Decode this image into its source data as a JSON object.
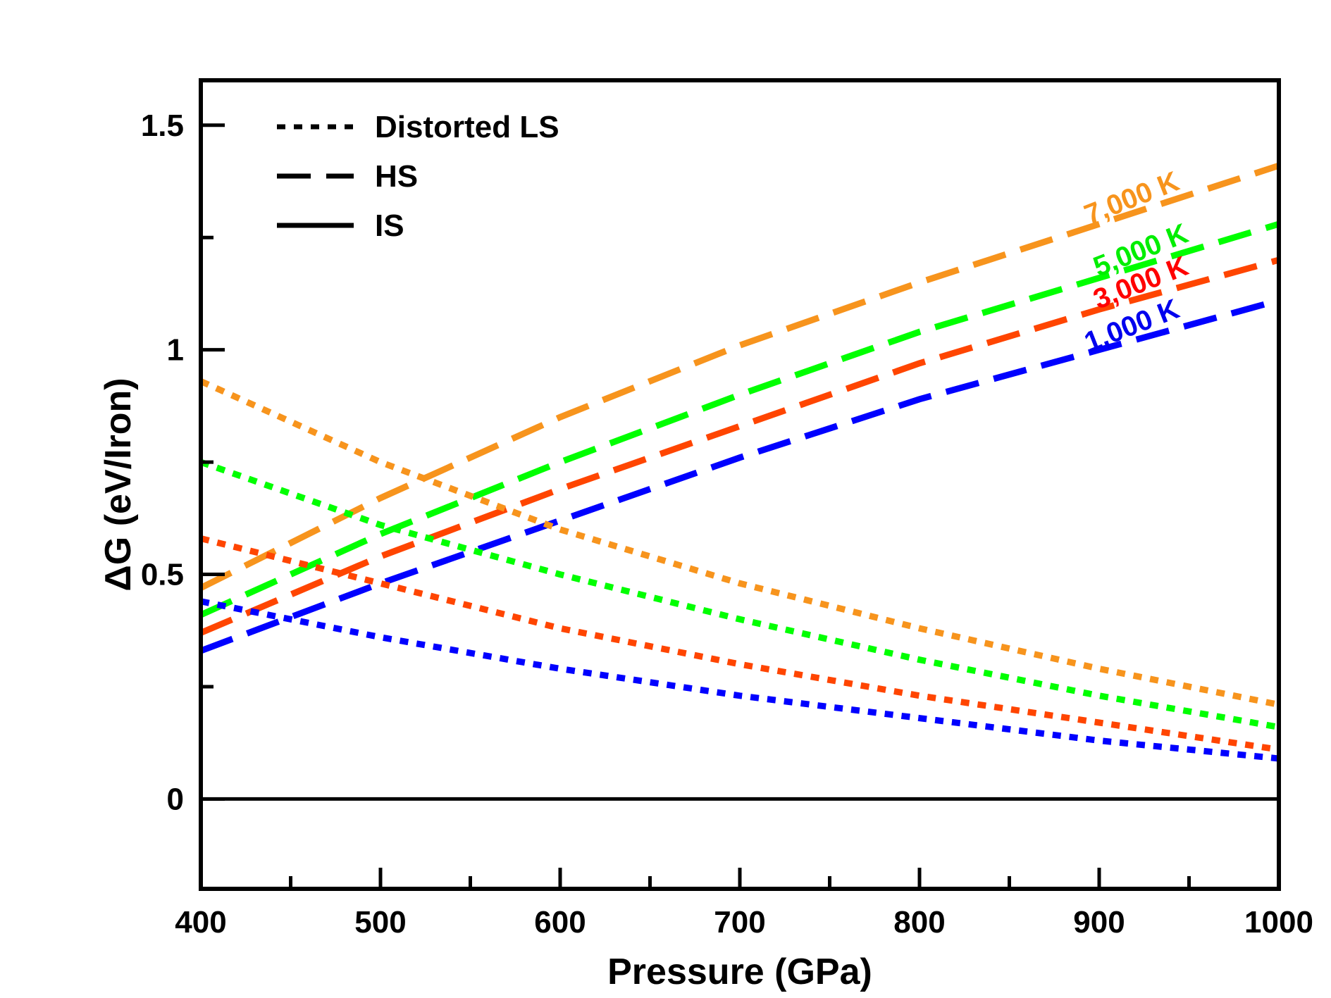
{
  "chart_data": {
    "type": "line",
    "xlabel": "Pressure (GPa)",
    "ylabel": "ΔG (eV/Iron)",
    "xlim": [
      400,
      1000
    ],
    "ylim": [
      -0.2,
      1.6
    ],
    "x_ticks": [
      {
        "value": 400,
        "label": "400"
      },
      {
        "value": 500,
        "label": "500"
      },
      {
        "value": 600,
        "label": "600"
      },
      {
        "value": 700,
        "label": "700"
      },
      {
        "value": 800,
        "label": "800"
      },
      {
        "value": 900,
        "label": "900"
      },
      {
        "value": 1000,
        "label": "1000"
      }
    ],
    "x_minor_ticks": [
      450,
      550,
      650,
      750,
      850,
      950
    ],
    "y_ticks": [
      {
        "value": 0,
        "label": "0"
      },
      {
        "value": 0.5,
        "label": "0.5"
      },
      {
        "value": 1,
        "label": "1"
      },
      {
        "value": 1.5,
        "label": "1.5"
      }
    ],
    "y_minor_ticks": [
      0.25,
      0.75,
      1.25
    ],
    "grid": false,
    "legend_position": "top-left",
    "legend": [
      {
        "label": "Distorted LS",
        "style": "dotted"
      },
      {
        "label": "HS",
        "style": "dashed"
      },
      {
        "label": "IS",
        "style": "solid"
      }
    ],
    "temperatures": [
      {
        "label": "7,000 K",
        "color": "#f7941d",
        "label_color": "#f7941d",
        "label_at": 920
      },
      {
        "label": "5,000 K",
        "color": "#00ff00",
        "label_color": "#00ee00",
        "label_at": 925
      },
      {
        "label": "3,000 K",
        "color": "#ff4500",
        "label_color": "#ff0000",
        "label_at": 925
      },
      {
        "label": "1,000 K",
        "color": "#0000ff",
        "label_color": "#0000ee",
        "label_at": 920
      }
    ],
    "series": [
      {
        "temperature": "7,000 K",
        "phase": "HS",
        "style": "dashed",
        "color": "#f7941d",
        "x": [
          400,
          500,
          600,
          700,
          800,
          900,
          1000
        ],
        "y": [
          0.47,
          0.67,
          0.85,
          1.01,
          1.15,
          1.28,
          1.41
        ]
      },
      {
        "temperature": "5,000 K",
        "phase": "HS",
        "style": "dashed",
        "color": "#00ff00",
        "x": [
          400,
          500,
          600,
          700,
          800,
          900,
          1000
        ],
        "y": [
          0.41,
          0.59,
          0.75,
          0.9,
          1.04,
          1.16,
          1.28
        ]
      },
      {
        "temperature": "3,000 K",
        "phase": "HS",
        "style": "dashed",
        "color": "#ff4500",
        "x": [
          400,
          500,
          600,
          700,
          800,
          900,
          1000
        ],
        "y": [
          0.37,
          0.54,
          0.69,
          0.83,
          0.97,
          1.09,
          1.2
        ]
      },
      {
        "temperature": "1,000 K",
        "phase": "HS",
        "style": "dashed",
        "color": "#0000ff",
        "x": [
          400,
          500,
          600,
          700,
          800,
          900,
          1000
        ],
        "y": [
          0.33,
          0.48,
          0.62,
          0.76,
          0.89,
          1.0,
          1.11
        ]
      },
      {
        "temperature": "7,000 K",
        "phase": "Distorted LS",
        "style": "dotted",
        "color": "#f7941d",
        "x": [
          400,
          500,
          600,
          700,
          800,
          900,
          1000
        ],
        "y": [
          0.93,
          0.75,
          0.6,
          0.48,
          0.38,
          0.29,
          0.21
        ]
      },
      {
        "temperature": "5,000 K",
        "phase": "Distorted LS",
        "style": "dotted",
        "color": "#00ff00",
        "x": [
          400,
          500,
          600,
          700,
          800,
          900,
          1000
        ],
        "y": [
          0.75,
          0.61,
          0.5,
          0.4,
          0.31,
          0.23,
          0.16
        ]
      },
      {
        "temperature": "3,000 K",
        "phase": "Distorted LS",
        "style": "dotted",
        "color": "#ff4500",
        "x": [
          400,
          500,
          600,
          700,
          800,
          900,
          1000
        ],
        "y": [
          0.58,
          0.48,
          0.38,
          0.3,
          0.23,
          0.17,
          0.11
        ]
      },
      {
        "temperature": "1,000 K",
        "phase": "Distorted LS",
        "style": "dotted",
        "color": "#0000ff",
        "x": [
          400,
          500,
          600,
          700,
          800,
          900,
          1000
        ],
        "y": [
          0.44,
          0.36,
          0.29,
          0.23,
          0.18,
          0.13,
          0.09
        ]
      },
      {
        "temperature": "all",
        "phase": "IS",
        "style": "solid",
        "color": "#000000",
        "x": [
          400,
          1000
        ],
        "y": [
          0,
          0
        ]
      }
    ]
  }
}
